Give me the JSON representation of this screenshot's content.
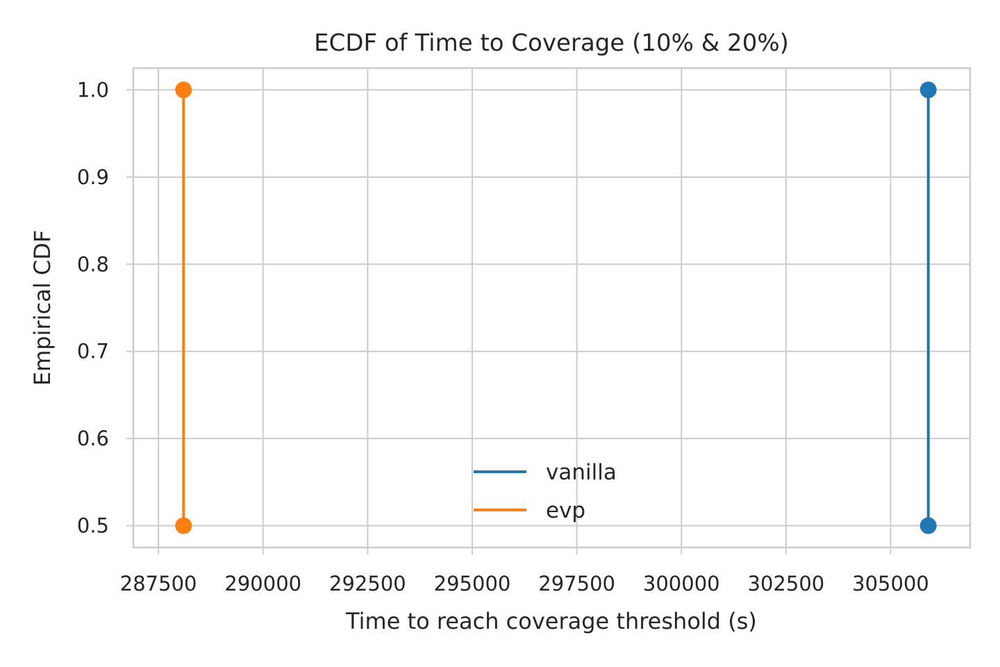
{
  "chart_data": {
    "type": "line",
    "title": "ECDF of Time to Coverage (10% & 20%)",
    "xlabel": "Time to reach coverage threshold (s)",
    "ylabel": "Empirical CDF",
    "xlim": [
      286900,
      306900
    ],
    "ylim": [
      0.475,
      1.025
    ],
    "xticks": [
      287500,
      290000,
      292500,
      295000,
      297500,
      300000,
      302500,
      305000
    ],
    "xtick_labels": [
      "287500",
      "290000",
      "292500",
      "295000",
      "297500",
      "300000",
      "302500",
      "305000"
    ],
    "yticks": [
      0.5,
      0.6,
      0.7,
      0.8,
      0.9,
      1.0
    ],
    "ytick_labels": [
      "0.5",
      "0.6",
      "0.7",
      "0.8",
      "0.9",
      "1.0"
    ],
    "grid": true,
    "legend_position": "lower-center",
    "series": [
      {
        "name": "vanilla",
        "color": "#1f77b4",
        "x": [
          305900,
          305900
        ],
        "y": [
          0.5,
          1.0
        ]
      },
      {
        "name": "evp",
        "color": "#ff7f0e",
        "x": [
          288100,
          288100
        ],
        "y": [
          0.5,
          1.0
        ]
      }
    ]
  }
}
